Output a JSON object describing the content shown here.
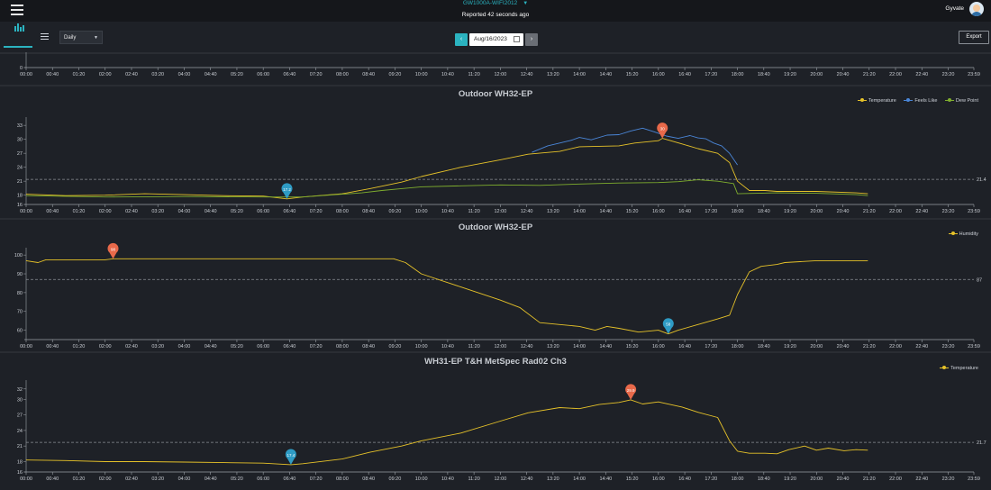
{
  "header": {
    "device": "GW1000A-WIFI2012",
    "reported": "Reported 42 seconds ago",
    "user": "Gyvate"
  },
  "toolbar": {
    "period": "Daily",
    "date": "Aug/16/2023",
    "prev": "‹",
    "next": "›",
    "export": "Export"
  },
  "time_ticks": [
    "00:00",
    "00:40",
    "01:20",
    "02:00",
    "02:40",
    "03:20",
    "04:00",
    "04:40",
    "05:20",
    "06:00",
    "06:40",
    "07:20",
    "08:00",
    "08:40",
    "09:20",
    "10:00",
    "10:40",
    "11:20",
    "12:00",
    "12:40",
    "13:20",
    "14:00",
    "14:40",
    "15:20",
    "16:00",
    "16:40",
    "17:20",
    "18:00",
    "18:40",
    "19:20",
    "20:00",
    "20:40",
    "21:20",
    "22:00",
    "22:40",
    "23:20",
    "23:59"
  ],
  "colors": {
    "accent": "#2bb3c0",
    "max_pin": "#e8694a",
    "min_pin": "#2e9bc4"
  },
  "chart_data": [
    {
      "type": "line",
      "id": "top-strip",
      "title": "",
      "yticks": [
        0
      ],
      "ylim": [
        0,
        1
      ],
      "series": []
    },
    {
      "type": "line",
      "id": "outdoor-temp",
      "title": "Outdoor WH32-EP",
      "yticks": [
        16,
        18,
        21,
        24,
        27,
        30,
        33
      ],
      "ylim": [
        16,
        34
      ],
      "avg": 21.4,
      "avg_label": "21.4",
      "legend_position": "top-right",
      "pins": [
        {
          "type": "max",
          "label": "30",
          "x": 16.1,
          "y": 30.2,
          "series": "Temperature"
        },
        {
          "type": "min",
          "label": "17.2",
          "x": 6.6,
          "y": 17.2,
          "series": "Temperature"
        }
      ],
      "series": [
        {
          "name": "Temperature",
          "color": "#e6c229",
          "x": [
            0,
            1,
            2,
            3,
            4,
            5,
            6,
            6.6,
            7,
            8,
            8.7,
            9.5,
            10,
            11,
            12,
            12.7,
            13.5,
            14,
            15,
            15.4,
            16,
            16.1,
            16.6,
            17,
            17.5,
            17.8,
            18,
            18.3,
            18.7,
            19,
            20,
            21,
            21.3
          ],
          "values": [
            18.2,
            17.9,
            18.0,
            18.3,
            18.1,
            17.9,
            17.8,
            17.2,
            17.6,
            18.3,
            19.4,
            20.8,
            22.0,
            24.0,
            25.6,
            26.8,
            27.4,
            28.4,
            28.6,
            29.2,
            29.7,
            30.2,
            29.0,
            28.0,
            27.0,
            25.0,
            21.0,
            19.0,
            19.0,
            18.8,
            18.8,
            18.5,
            18.3
          ]
        },
        {
          "name": "Feels Like",
          "color": "#4a86d8",
          "x": [
            12.8,
            13.2,
            13.5,
            13.8,
            14.0,
            14.3,
            14.7,
            15.0,
            15.3,
            15.6,
            15.9,
            16.2,
            16.5,
            16.8,
            17.0,
            17.2,
            17.4,
            17.6,
            17.8,
            18.0
          ],
          "values": [
            27.2,
            28.6,
            29.2,
            29.8,
            30.4,
            29.9,
            30.9,
            31.0,
            31.8,
            32.4,
            31.6,
            30.7,
            30.2,
            30.8,
            30.3,
            30.1,
            29.2,
            28.6,
            27.0,
            24.5
          ]
        },
        {
          "name": "Dew Point",
          "color": "#7fae2e",
          "x": [
            0,
            2,
            4,
            6,
            7,
            8,
            8.5,
            9,
            9.5,
            10,
            11,
            12,
            13,
            14,
            15,
            16,
            16.5,
            17,
            17.5,
            17.9,
            18,
            18.5,
            19,
            20,
            21,
            21.3
          ],
          "values": [
            17.9,
            17.6,
            17.7,
            17.6,
            17.6,
            18.2,
            18.5,
            19.0,
            19.4,
            19.8,
            20.0,
            20.2,
            20.1,
            20.4,
            20.6,
            20.7,
            20.9,
            21.3,
            21.0,
            20.5,
            18.3,
            18.4,
            18.5,
            18.4,
            18.1,
            17.9
          ]
        }
      ]
    },
    {
      "type": "line",
      "id": "outdoor-humidity",
      "title": "Outdoor WH32-EP",
      "yticks": [
        60,
        70,
        80,
        90,
        100
      ],
      "ylim": [
        55,
        102
      ],
      "avg": 87,
      "avg_label": "87",
      "legend_position": "top-right",
      "pins": [
        {
          "type": "max",
          "label": "98",
          "x": 2.2,
          "y": 98,
          "series": "Humidity"
        },
        {
          "type": "min",
          "label": "58",
          "x": 16.25,
          "y": 58,
          "series": "Humidity"
        }
      ],
      "series": [
        {
          "name": "Humidity",
          "color": "#e6c229",
          "x": [
            0,
            0.3,
            0.5,
            2,
            2.2,
            5,
            8,
            9.3,
            9.6,
            10,
            11,
            12,
            12.5,
            13,
            13.5,
            14,
            14.4,
            14.7,
            15,
            15.5,
            16,
            16.25,
            16.5,
            17,
            17.5,
            17.8,
            18,
            18.3,
            18.6,
            19,
            19.2,
            20,
            21,
            21.3
          ],
          "values": [
            97,
            96,
            97.5,
            97.5,
            98,
            98,
            98,
            98,
            96,
            90,
            83,
            76,
            72,
            64,
            63,
            62,
            60,
            62,
            61,
            59,
            60,
            58,
            60,
            63,
            66,
            68,
            79,
            91,
            94,
            95,
            96,
            97,
            97,
            97
          ]
        }
      ]
    },
    {
      "type": "line",
      "id": "wh31-temp",
      "title": "WH31-EP T&H MetSpec Rad02 Ch3",
      "yticks": [
        16,
        18,
        21,
        24,
        27,
        30,
        32
      ],
      "ylim": [
        16,
        33
      ],
      "avg": 21.7,
      "avg_label": "21.7",
      "legend_position": "top-right",
      "pins": [
        {
          "type": "max",
          "label": "29.9",
          "x": 15.3,
          "y": 29.9,
          "series": "Temperature"
        },
        {
          "type": "min",
          "label": "17.4",
          "x": 6.7,
          "y": 17.4,
          "series": "Temperature"
        }
      ],
      "series": [
        {
          "name": "Temperature",
          "color": "#e6c229",
          "x": [
            0,
            1,
            2,
            3,
            4,
            5,
            6,
            6.7,
            7,
            8,
            8.7,
            9.5,
            10,
            11,
            12,
            12.7,
            13.5,
            14,
            14.5,
            15,
            15.3,
            15.6,
            16,
            16.6,
            17,
            17.5,
            17.8,
            18,
            18.3,
            18.7,
            19,
            19.3,
            19.7,
            20,
            20.3,
            20.7,
            21,
            21.3
          ],
          "values": [
            18.3,
            18.2,
            18.0,
            18.0,
            17.9,
            17.8,
            17.7,
            17.4,
            17.6,
            18.5,
            19.8,
            21.0,
            22.0,
            23.5,
            25.8,
            27.4,
            28.4,
            28.2,
            29.0,
            29.4,
            29.9,
            29.1,
            29.5,
            28.5,
            27.5,
            26.5,
            22.0,
            20.0,
            19.6,
            19.6,
            19.5,
            20.3,
            21.0,
            20.2,
            20.6,
            20.1,
            20.3,
            20.2
          ]
        }
      ]
    }
  ]
}
